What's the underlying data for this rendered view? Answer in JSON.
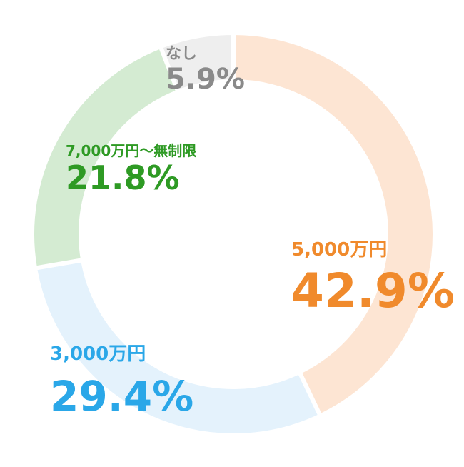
{
  "chart_data": {
    "type": "pie",
    "categories": [
      "5,000万円",
      "3,000万円",
      "7,000万円〜無制限",
      "なし"
    ],
    "values": [
      42.9,
      29.4,
      21.8,
      5.9
    ],
    "value_labels": [
      "42.9%",
      "29.4%",
      "21.8%",
      "5.9%"
    ],
    "colors": [
      "#fde5d3",
      "#e4f2fc",
      "#d4ebd2",
      "#eeeeee"
    ],
    "label_colors": [
      "#f08a2c",
      "#2aa7e8",
      "#2e9a24",
      "#8a8a8a"
    ]
  }
}
